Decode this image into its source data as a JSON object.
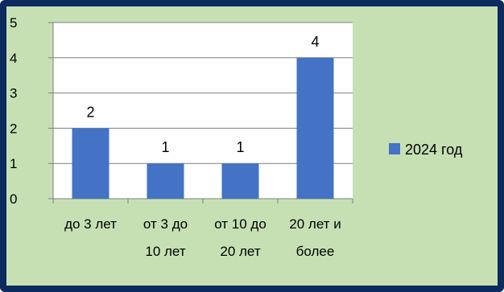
{
  "chart_data": {
    "type": "bar",
    "categories": [
      [
        "до 3 лет",
        ""
      ],
      [
        "от 3 до",
        "10  лет"
      ],
      [
        "от 10 до",
        "20 лет"
      ],
      [
        "20 лет и",
        "более"
      ]
    ],
    "series": [
      {
        "name": "2024 год",
        "values": [
          2,
          1,
          1,
          4
        ],
        "color": "#4472c4"
      }
    ],
    "data_labels": [
      "2",
      "1",
      "1",
      "4"
    ],
    "yticks": [
      "0",
      "1",
      "2",
      "3",
      "4",
      "5"
    ],
    "ylim": [
      0,
      5
    ],
    "grid": true,
    "legend": "right",
    "plot_background": "#ffffff",
    "background": "#c6e0b4",
    "border_color": "#0b2a5e"
  }
}
